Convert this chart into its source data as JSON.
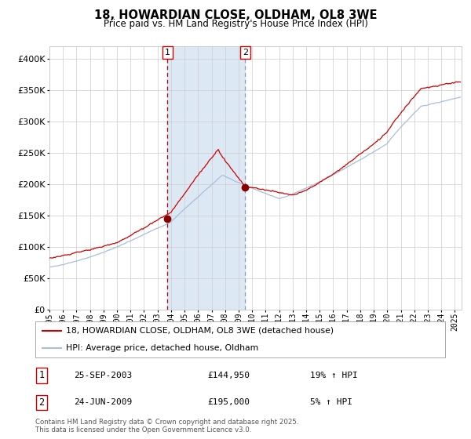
{
  "title": "18, HOWARDIAN CLOSE, OLDHAM, OL8 3WE",
  "subtitle": "Price paid vs. HM Land Registry's House Price Index (HPI)",
  "legend_line1": "18, HOWARDIAN CLOSE, OLDHAM, OL8 3WE (detached house)",
  "legend_line2": "HPI: Average price, detached house, Oldham",
  "annotation1_date": "25-SEP-2003",
  "annotation1_price": "£144,950",
  "annotation1_hpi": "19% ↑ HPI",
  "annotation2_date": "24-JUN-2009",
  "annotation2_price": "£195,000",
  "annotation2_hpi": "5% ↑ HPI",
  "footer": "Contains HM Land Registry data © Crown copyright and database right 2025.\nThis data is licensed under the Open Government Licence v3.0.",
  "line_color_red": "#cc0000",
  "line_color_blue": "#a8bfd8",
  "marker_color": "#880000",
  "vline1_color": "#cc0000",
  "vline2_color": "#8899bb",
  "shade_color": "#dde8f5",
  "background_color": "#ffffff",
  "grid_color": "#cccccc",
  "ylim": [
    0,
    420000
  ],
  "sale1_x": 2003.73,
  "sale1_y": 144950,
  "sale2_x": 2009.48,
  "sale2_y": 195000,
  "xmin": 1995.0,
  "xmax": 2025.5
}
